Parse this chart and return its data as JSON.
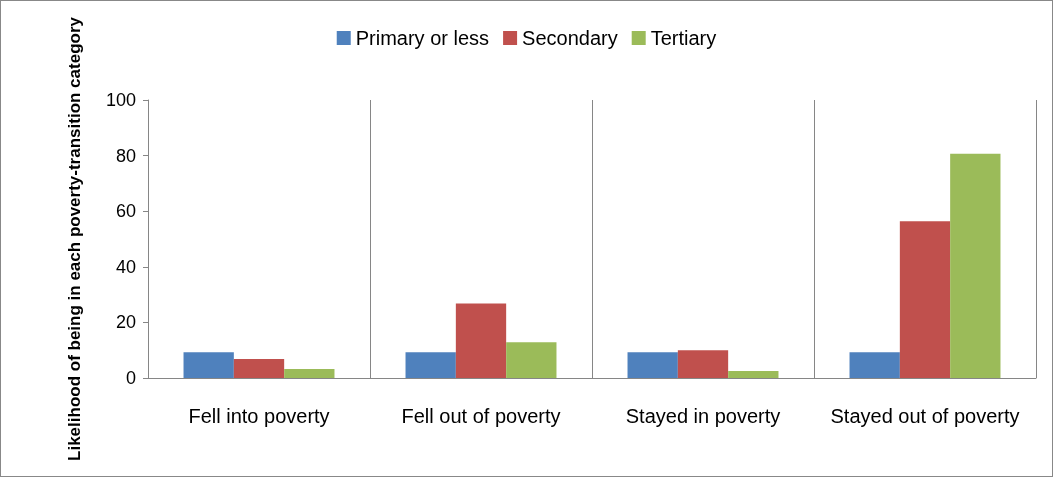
{
  "chart_data": {
    "type": "bar",
    "ylabel": "Likelihood of being in each poverty-transition category",
    "categories": [
      "Fell into poverty",
      "Fell out of poverty",
      "Stayed in poverty",
      "Stayed out of poverty"
    ],
    "series": [
      {
        "name": "Primary or less",
        "color": "#4f81bd",
        "values": [
          9.3,
          9.3,
          9.3,
          9.3
        ]
      },
      {
        "name": "Secondary",
        "color": "#c0504d",
        "values": [
          6.8,
          26.8,
          10,
          56.4
        ]
      },
      {
        "name": "Tertiary",
        "color": "#9bbb59",
        "values": [
          3.2,
          12.9,
          2.5,
          80.7
        ]
      }
    ],
    "ylim": [
      0,
      100
    ],
    "yticks": [
      0,
      20,
      40,
      60,
      80,
      100
    ],
    "grid": "x",
    "legend": "top"
  }
}
